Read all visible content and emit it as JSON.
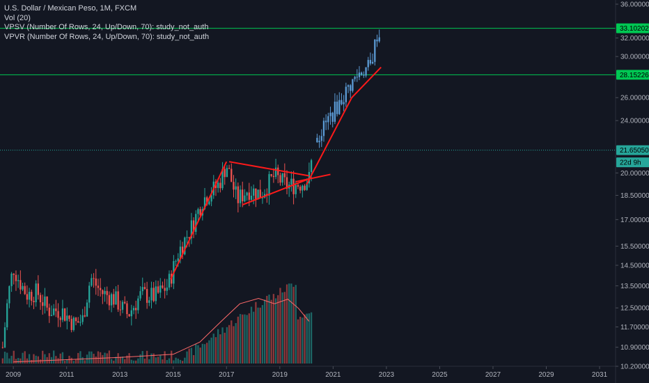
{
  "legend": {
    "title": "U.S. Dollar / Mexican Peso, 1M, FXCM",
    "vol": "Vol (20)",
    "vpsv": "VPSV (Number Of Rows, 24, Up/Down, 70): study_not_auth",
    "vpvr": "VPVR (Number Of Rows, 24, Up/Down, 70): study_not_auth"
  },
  "colors": {
    "background": "#131722",
    "up": "#26a69a",
    "down": "#ef5350",
    "projection": "#5b9bd5",
    "hline": "#00c853",
    "trendline": "#ff1a1a",
    "vol_ma": "#ff6a6a",
    "last_price_tag": "#26a69a",
    "current_line": "#26a69a"
  },
  "chart_data": {
    "type": "candlestick",
    "symbol": "USDMXN",
    "interval": "1M",
    "y_scale": "log",
    "ylim": [
      10.2,
      36.0
    ],
    "xlim": [
      2008.5,
      2031.6
    ],
    "x_ticks": [
      "2009",
      "2011",
      "2013",
      "2015",
      "2017",
      "2019",
      "2021",
      "2023",
      "2025",
      "2027",
      "2029",
      "2031"
    ],
    "y_ticks": [
      "36.00000",
      "32.00000",
      "30.00000",
      "26.00000",
      "24.00000",
      "20.00000",
      "18.50000",
      "17.00000",
      "15.50000",
      "14.50000",
      "13.50000",
      "12.50000",
      "11.70000",
      "10.90000",
      "10.20000"
    ],
    "y_tick_values": [
      36.0,
      32.0,
      30.0,
      26.0,
      24.0,
      20.0,
      18.5,
      17.0,
      15.5,
      14.5,
      13.5,
      12.5,
      11.7,
      10.9,
      10.2
    ],
    "price_tags": [
      {
        "label": "33.10202",
        "value": 33.10202,
        "color": "#00c853"
      },
      {
        "label": "28.15226",
        "value": 28.15226,
        "color": "#00c853"
      },
      {
        "label": "21.65050",
        "value": 21.6505,
        "color": "#26a69a"
      },
      {
        "label": "22d 9h",
        "value": 20.75,
        "color": "#26a69a"
      }
    ],
    "horizontal_lines": [
      33.10202,
      28.15226
    ],
    "current_price": 21.6505,
    "closes": [
      {
        "x": 2008.6,
        "c": 10.9
      },
      {
        "x": 2008.8,
        "c": 13.0
      },
      {
        "x": 2009.0,
        "c": 14.4
      },
      {
        "x": 2009.2,
        "c": 13.8
      },
      {
        "x": 2009.5,
        "c": 13.1
      },
      {
        "x": 2009.9,
        "c": 13.2
      },
      {
        "x": 2010.3,
        "c": 12.4
      },
      {
        "x": 2010.8,
        "c": 12.4
      },
      {
        "x": 2011.3,
        "c": 11.8
      },
      {
        "x": 2011.6,
        "c": 12.0
      },
      {
        "x": 2011.9,
        "c": 13.9
      },
      {
        "x": 2012.3,
        "c": 13.2
      },
      {
        "x": 2012.8,
        "c": 12.9
      },
      {
        "x": 2013.3,
        "c": 12.2
      },
      {
        "x": 2013.8,
        "c": 13.1
      },
      {
        "x": 2014.3,
        "c": 13.0
      },
      {
        "x": 2014.8,
        "c": 13.5
      },
      {
        "x": 2015.2,
        "c": 15.2
      },
      {
        "x": 2015.7,
        "c": 16.6
      },
      {
        "x": 2016.1,
        "c": 18.2
      },
      {
        "x": 2016.7,
        "c": 19.2
      },
      {
        "x": 2017.0,
        "c": 20.6
      },
      {
        "x": 2017.4,
        "c": 18.2
      },
      {
        "x": 2017.8,
        "c": 18.9
      },
      {
        "x": 2018.3,
        "c": 18.6
      },
      {
        "x": 2018.8,
        "c": 19.8
      },
      {
        "x": 2019.3,
        "c": 19.1
      },
      {
        "x": 2019.8,
        "c": 19.3
      },
      {
        "x": 2020.1,
        "c": 19.6
      },
      {
        "x": 2020.25,
        "c": 21.65
      }
    ],
    "projection": [
      {
        "x": 2020.4,
        "c": 22.6
      },
      {
        "x": 2020.8,
        "c": 24.0
      },
      {
        "x": 2021.2,
        "c": 25.4
      },
      {
        "x": 2021.6,
        "c": 27.0
      },
      {
        "x": 2022.0,
        "c": 28.4
      },
      {
        "x": 2022.4,
        "c": 29.0
      },
      {
        "x": 2022.7,
        "c": 33.1
      },
      {
        "x": 2022.8,
        "c": 30.5
      }
    ],
    "trendlines": [
      {
        "x1": 2014.9,
        "y1": 13.8,
        "x2": 2017.0,
        "y2": 20.8
      },
      {
        "x1": 2017.1,
        "y1": 20.8,
        "x2": 2020.1,
        "y2": 19.8
      },
      {
        "x1": 2017.6,
        "y1": 17.9,
        "x2": 2020.1,
        "y2": 19.6
      },
      {
        "x1": 2019.6,
        "y1": 19.4,
        "x2": 2020.9,
        "y2": 19.9
      },
      {
        "x1": 2020.0,
        "y1": 19.2,
        "x2": 2021.7,
        "y2": 26.0
      },
      {
        "x1": 2021.7,
        "y1": 26.0,
        "x2": 2022.8,
        "y2": 28.9
      }
    ],
    "volume_ma_line": [
      {
        "x": 2009.0,
        "v": 0.02
      },
      {
        "x": 2011.0,
        "v": 0.05
      },
      {
        "x": 2013.0,
        "v": 0.08
      },
      {
        "x": 2015.0,
        "v": 0.12
      },
      {
        "x": 2016.0,
        "v": 0.28
      },
      {
        "x": 2016.8,
        "v": 0.55
      },
      {
        "x": 2017.5,
        "v": 0.78
      },
      {
        "x": 2018.2,
        "v": 0.85
      },
      {
        "x": 2018.8,
        "v": 0.78
      },
      {
        "x": 2019.3,
        "v": 0.84
      },
      {
        "x": 2019.7,
        "v": 0.72
      },
      {
        "x": 2020.1,
        "v": 0.55
      }
    ]
  }
}
